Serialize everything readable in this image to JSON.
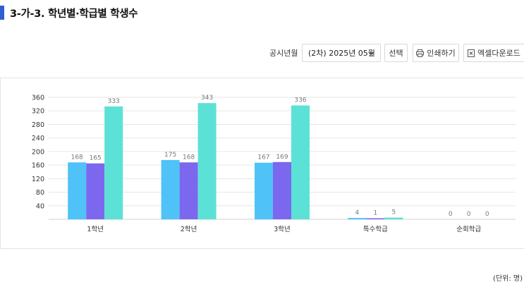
{
  "header": {
    "title": "3-가-3. 학년별·학급별 학생수"
  },
  "toolbar": {
    "period_label": "공시년월",
    "period_value": "(2차) 2025년 05월",
    "select_label": "선택",
    "print_label": "인쇄하기",
    "excel_label": "엑셀다운로드"
  },
  "chart_data": {
    "type": "bar",
    "categories": [
      "1학년",
      "2학년",
      "3학년",
      "특수학급",
      "순회학급"
    ],
    "series": [
      {
        "name": "",
        "color": "#4fc3f7",
        "values": [
          168,
          175,
          167,
          4,
          0
        ]
      },
      {
        "name": "",
        "color": "#7b68ee",
        "values": [
          165,
          168,
          169,
          1,
          0
        ]
      },
      {
        "name": "",
        "color": "#5ce1d6",
        "values": [
          333,
          343,
          336,
          5,
          0
        ]
      }
    ],
    "yticks": [
      40,
      80,
      120,
      160,
      200,
      240,
      280,
      320,
      360
    ],
    "ylim": [
      0,
      360
    ],
    "grid": true
  },
  "footer": {
    "unit": "(단위: 명)"
  }
}
